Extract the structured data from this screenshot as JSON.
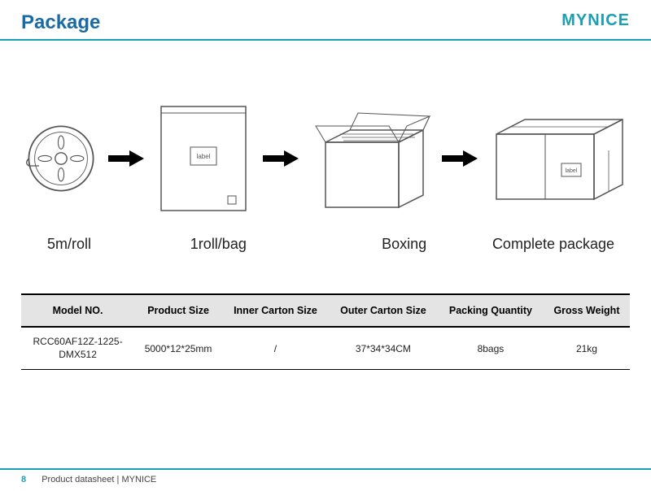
{
  "header": {
    "title": "Package",
    "brand": "MYNICE"
  },
  "colors": {
    "accent": "#1a9fb5",
    "title": "#1a6aa5",
    "arrow": "#000000",
    "stroke": "#555555",
    "table_header_bg": "#e4e4e4"
  },
  "diagram": {
    "steps": [
      {
        "caption": "5m/roll",
        "label": ""
      },
      {
        "caption": "1roll/bag",
        "label": "label"
      },
      {
        "caption": "Boxing",
        "label": ""
      },
      {
        "caption": "Complete package",
        "label": "label"
      }
    ]
  },
  "table": {
    "columns": [
      "Model NO.",
      "Product Size",
      "Inner Carton Size",
      "Outer Carton Size",
      "Packing Quantity",
      "Gross Weight"
    ],
    "rows": [
      [
        "RCC60AF12Z-1225-DMX512",
        "5000*12*25mm",
        "/",
        "37*34*34CM",
        "8bags",
        "21kg"
      ]
    ]
  },
  "footer": {
    "page": "8",
    "text": "Product datasheet | MYNICE"
  }
}
